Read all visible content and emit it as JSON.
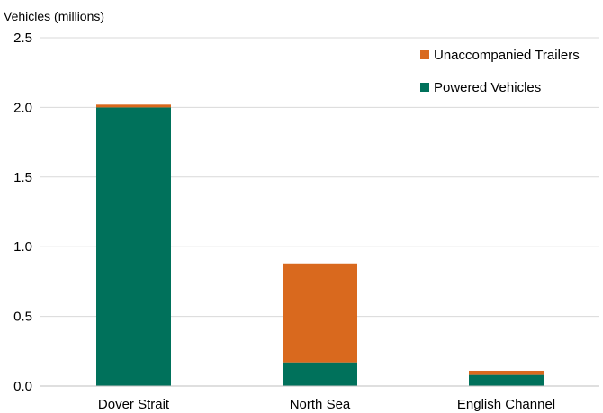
{
  "chart_data": {
    "type": "bar",
    "stacked": true,
    "ylabel": "Vehicles (millions)",
    "xlabel": "",
    "ylim": [
      0,
      2.5
    ],
    "yticks": [
      "0.0",
      "0.5",
      "1.0",
      "1.5",
      "2.0",
      "2.5"
    ],
    "categories": [
      "Dover Strait",
      "North Sea",
      "English Channel"
    ],
    "series": [
      {
        "name": "Powered Vehicles",
        "values": [
          2.0,
          0.17,
          0.08
        ],
        "color": "#00715b"
      },
      {
        "name": "Unaccompanied Trailers",
        "values": [
          0.02,
          0.71,
          0.03
        ],
        "color": "#d9691e"
      }
    ],
    "legend": {
      "position": "top-right",
      "order": [
        "Unaccompanied Trailers",
        "Powered Vehicles"
      ]
    },
    "grid": "horizontal"
  }
}
